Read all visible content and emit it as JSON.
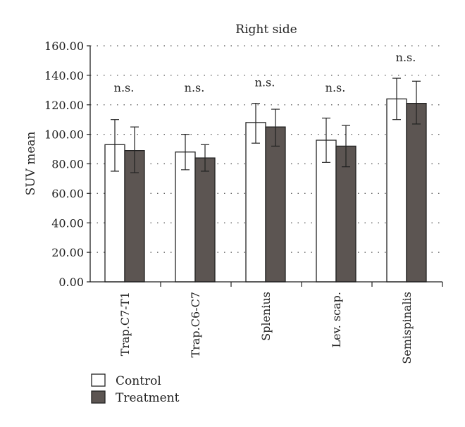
{
  "chart_data": {
    "type": "bar",
    "title": "Right side",
    "xlabel": "",
    "ylabel": "SUV mean",
    "ylim": [
      0,
      160
    ],
    "yticks": [
      "0.00",
      "20.00",
      "40.00",
      "60.00",
      "80.00",
      "100.00",
      "120.00",
      "140.00",
      "160.00"
    ],
    "grid": "horizontal dotted",
    "legend_position": "bottom-left",
    "categories": [
      "Trap.C7-T1",
      "Trap.C6-C7",
      "Splenius",
      "Lev. scap.",
      "Semispinalis"
    ],
    "series": [
      {
        "name": "Control",
        "color": "#ffffff",
        "values": [
          93,
          88,
          108,
          96,
          124
        ],
        "error_low": [
          75,
          76,
          94,
          81,
          110
        ],
        "error_high": [
          110,
          100,
          121,
          111,
          138
        ]
      },
      {
        "name": "Treatment",
        "color": "#5c5552",
        "values": [
          89,
          84,
          105,
          92,
          121
        ],
        "error_low": [
          74,
          75,
          92,
          78,
          107
        ],
        "error_high": [
          105,
          93,
          117,
          106,
          136
        ]
      }
    ],
    "annotations": [
      "n.s.",
      "n.s.",
      "n.s.",
      "n.s.",
      "n.s."
    ]
  }
}
